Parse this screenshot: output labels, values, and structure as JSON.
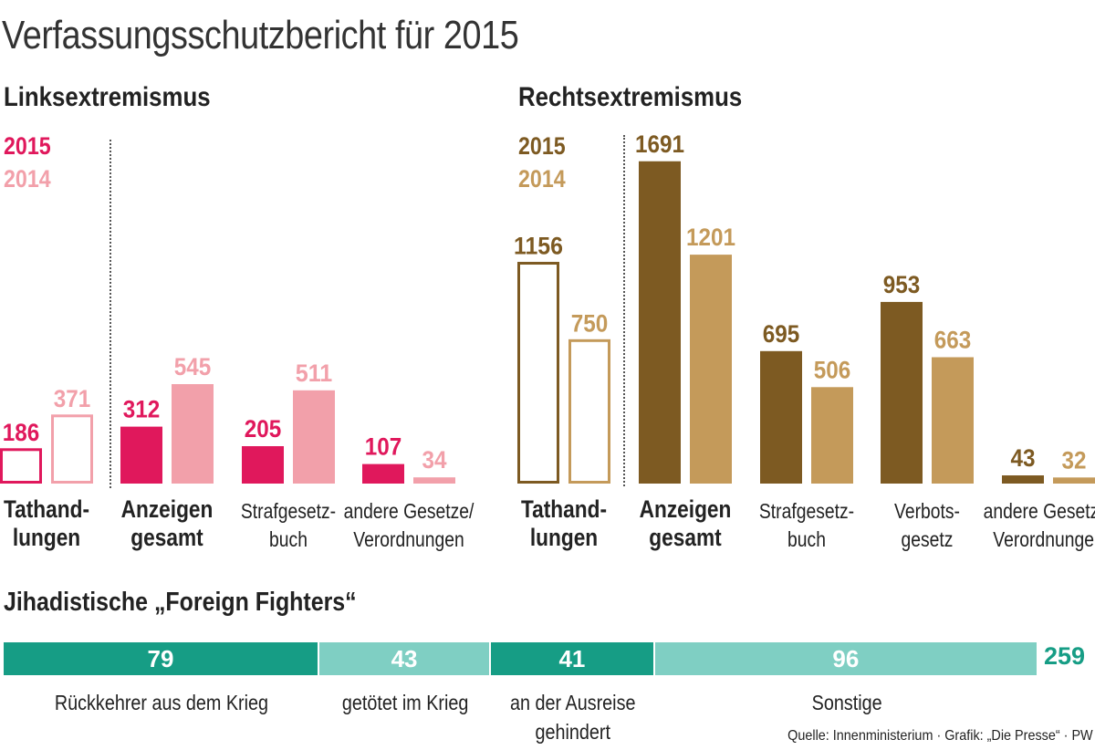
{
  "title": "Verfassungsschutzbericht für 2015",
  "colors": {
    "links_2015": "#e0185c",
    "links_2014": "#f2a0aa",
    "rechts_2015": "#7d5a22",
    "rechts_2014": "#c49a5a",
    "ff_dark": "#169d85",
    "ff_light": "#7fcfc3"
  },
  "chart_data": [
    {
      "type": "bar",
      "title": "Linksextremismus",
      "legend": [
        "2015",
        "2014"
      ],
      "categories": [
        "Tathand-\nlungen",
        "Anzeigen\ngesamt",
        "Strafgesetz-\nbuch",
        "andere Gesetze/\nVerordnungen"
      ],
      "series": [
        {
          "name": "2015",
          "values": [
            186,
            312,
            205,
            107
          ]
        },
        {
          "name": "2014",
          "values": [
            371,
            545,
            511,
            34
          ]
        }
      ]
    },
    {
      "type": "bar",
      "title": "Rechtsextremismus",
      "legend": [
        "2015",
        "2014"
      ],
      "categories": [
        "Tathand-\nlungen",
        "Anzeigen\ngesamt",
        "Strafgesetz-\nbuch",
        "Verbots-\ngesetz",
        "andere Gesetze/\nVerordnungen"
      ],
      "series": [
        {
          "name": "2015",
          "values": [
            1156,
            1691,
            695,
            953,
            43
          ]
        },
        {
          "name": "2014",
          "values": [
            750,
            1201,
            506,
            663,
            32
          ]
        }
      ]
    },
    {
      "type": "bar",
      "title": "Jihadistische „Foreign Fighters“",
      "categories": [
        "Rückkehrer aus dem Krieg",
        "getötet im Krieg",
        "an der Ausreise\ngehindert",
        "Sonstige"
      ],
      "values": [
        79,
        43,
        41,
        96
      ],
      "total": "259"
    }
  ],
  "source": "Quelle: Innenministerium · Grafik: „Die Presse“ · PW"
}
